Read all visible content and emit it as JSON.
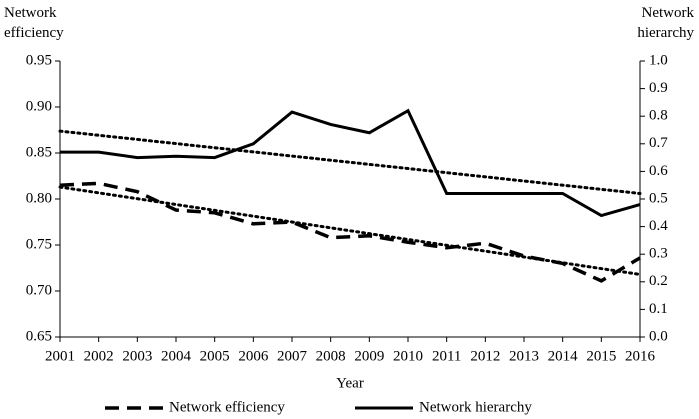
{
  "chart_data": {
    "type": "line",
    "y_label": "Network efficiency",
    "y2_label": "Network hierarchy",
    "x_label": "Year",
    "categories": [
      "2001",
      "2002",
      "2003",
      "2004",
      "2005",
      "2006",
      "2007",
      "2008",
      "2009",
      "2010",
      "2011",
      "2012",
      "2013",
      "2014",
      "2015",
      "2016"
    ],
    "series": [
      {
        "name": "Network efficiency",
        "color": "#000000",
        "style": "dashed",
        "axis": "y",
        "values": [
          0.815,
          0.817,
          0.808,
          0.788,
          0.785,
          0.773,
          0.775,
          0.758,
          0.76,
          0.753,
          0.747,
          0.752,
          0.738,
          0.73,
          0.711,
          0.736
        ]
      },
      {
        "name": "Network hierarchy",
        "color": "#000000",
        "style": "solid",
        "axis": "y2",
        "values": [
          0.67,
          0.67,
          0.65,
          0.655,
          0.65,
          0.7,
          0.815,
          0.77,
          0.74,
          0.82,
          0.52,
          0.52,
          0.52,
          0.52,
          0.44,
          0.48
        ]
      }
    ],
    "trendlines": [
      {
        "axis": "y",
        "style": "dotted",
        "color": "#000000",
        "start": 0.813,
        "end": 0.718
      },
      {
        "axis": "y2",
        "style": "dotted",
        "color": "#000000",
        "start": 0.746,
        "end": 0.52
      }
    ],
    "ylim": [
      0.65,
      0.95
    ],
    "yticks": [
      0.65,
      {
        "value": 0.7,
        "label": "0.70"
      },
      0.75,
      {
        "value": 0.8,
        "label": "0.80"
      },
      0.85,
      {
        "value": 0.9,
        "label": "0.90"
      },
      0.95
    ],
    "y2lim": [
      0,
      1
    ],
    "y2ticks": [
      {
        "value": 0,
        "label": "0.0"
      },
      0.1,
      0.2,
      0.3,
      0.4,
      0.5,
      0.6,
      0.7,
      0.8,
      0.9,
      {
        "value": 1,
        "label": "1.0"
      }
    ],
    "legend": "bottom"
  }
}
